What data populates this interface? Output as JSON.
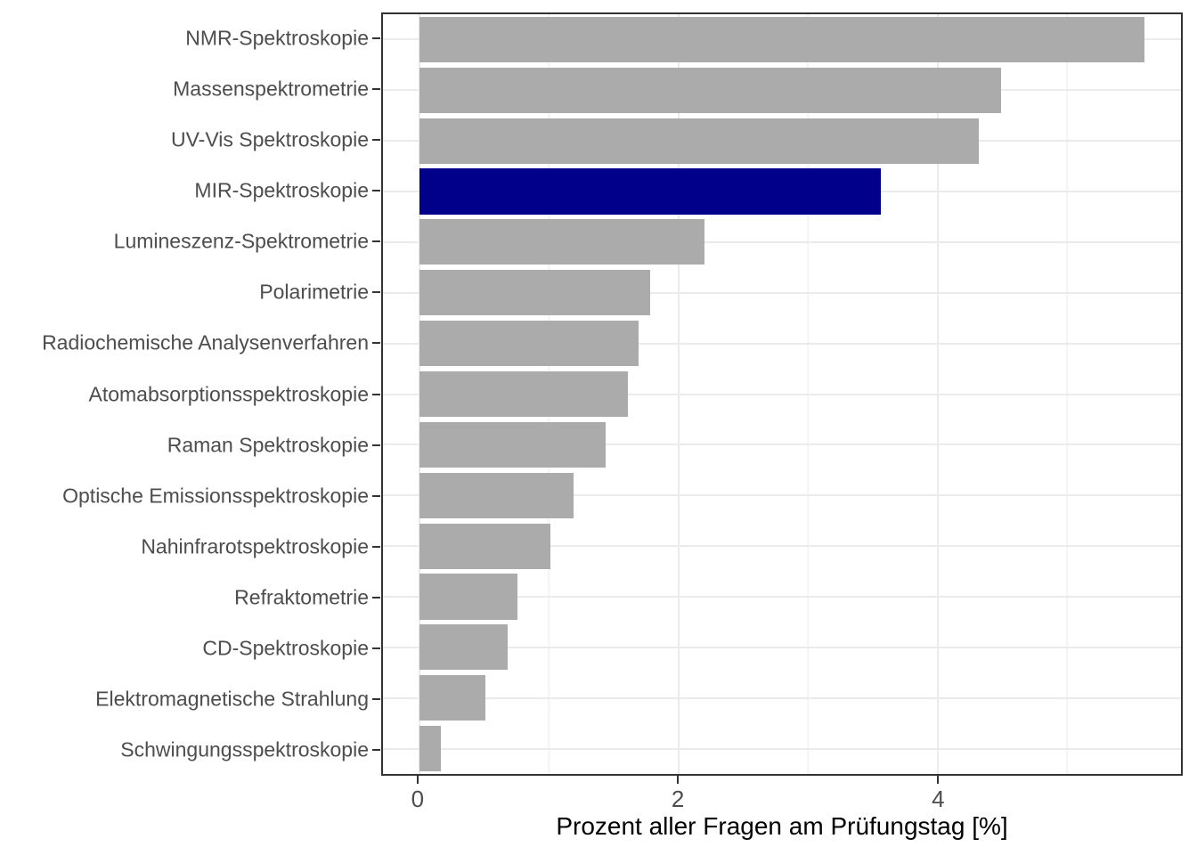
{
  "chart_data": {
    "type": "bar",
    "orientation": "horizontal",
    "title": "",
    "xlabel": "Prozent aller Fragen am Prüfungstag [%]",
    "ylabel": "",
    "categories": [
      "NMR-Spektroskopie",
      "Massenspektrometrie",
      "UV-Vis Spektroskopie",
      "MIR-Spektroskopie",
      "Lumineszenz-Spektrometrie",
      "Polarimetrie",
      "Radiochemische Analysenverfahren",
      "Atomabsorptionsspektroskopie",
      "Raman Spektroskopie",
      "Optische Emissionsspektroskopie",
      "Nahinfrarotspektroskopie",
      "Refraktometrie",
      "CD-Spektroskopie",
      "Elektromagnetische Strahlung",
      "Schwingungsspektroskopie"
    ],
    "values": [
      5.6,
      4.49,
      4.32,
      3.56,
      2.2,
      1.78,
      1.69,
      1.61,
      1.44,
      1.19,
      1.01,
      0.76,
      0.68,
      0.51,
      0.17
    ],
    "highlighted_category": "MIR-Spektroskopie",
    "x_ticks": [
      0,
      2,
      4
    ],
    "x_tick_labels": [
      "0",
      "2",
      "4"
    ],
    "x_minor_ticks": [
      1,
      3,
      5
    ],
    "xlim": [
      -0.28,
      5.88
    ],
    "bar_width_fraction": 0.9,
    "grid": true,
    "legend": false,
    "colors": {
      "bar": "#ABABAB",
      "highlight": "#00008B",
      "grid_major": "#EBEBEB",
      "grid_minor": "#F4F4F4",
      "panel_border": "#333333",
      "tick": "#333333",
      "tick_label": "#4D4D4D",
      "axis_title": "#000000",
      "background": "#FFFFFF"
    }
  }
}
